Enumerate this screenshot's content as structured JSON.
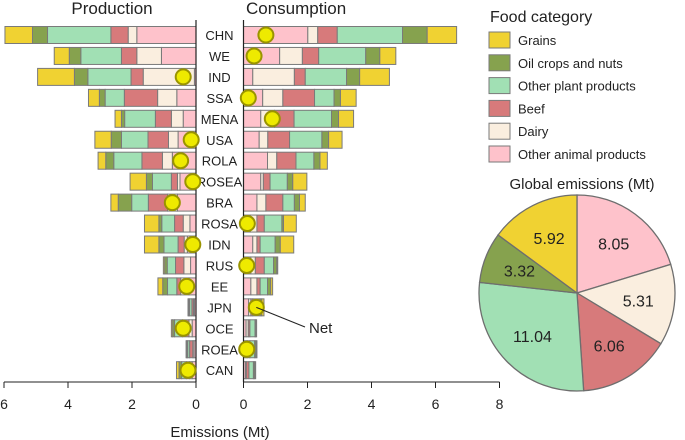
{
  "chart_data": [
    {
      "type": "bar",
      "orientation": "horizontal-stacked",
      "title": "Production",
      "xlabel": "Emissions (Mt)",
      "xlim": [
        6,
        0
      ],
      "xticks": [
        6,
        4,
        2,
        0
      ],
      "categories": [
        "CHN",
        "WE",
        "IND",
        "SSA",
        "MENA",
        "USA",
        "ROLA",
        "ROSEA",
        "BRA",
        "ROSA",
        "IDN",
        "RUS",
        "EE",
        "JPN",
        "OCE",
        "ROEA",
        "CAN"
      ],
      "series": [
        {
          "name": "Other animal products",
          "values": [
            1.85,
            1.08,
            0.05,
            0.6,
            0.4,
            0.56,
            0.74,
            0.5,
            0.58,
            0.19,
            0.27,
            0.17,
            0.22,
            0.05,
            0.12,
            0.06,
            0.12
          ]
        },
        {
          "name": "Dairy",
          "values": [
            0.27,
            0.77,
            1.6,
            0.6,
            0.37,
            0.3,
            0.31,
            0.08,
            0.31,
            0.21,
            0.1,
            0.21,
            0.26,
            0.03,
            0.1,
            0.04,
            0.08
          ]
        },
        {
          "name": "Beef",
          "values": [
            0.54,
            0.48,
            0.38,
            1.04,
            0.5,
            0.64,
            0.64,
            0.19,
            0.6,
            0.27,
            0.19,
            0.26,
            0.12,
            0.05,
            0.2,
            0.1,
            0.1
          ]
        },
        {
          "name": "Other plant products",
          "values": [
            1.98,
            1.27,
            1.35,
            0.6,
            0.96,
            0.83,
            0.88,
            0.59,
            0.52,
            0.4,
            0.44,
            0.26,
            0.29,
            0.07,
            0.25,
            0.06,
            0.15
          ]
        },
        {
          "name": "Oil crops and nuts",
          "values": [
            0.47,
            0.36,
            0.42,
            0.18,
            0.1,
            0.32,
            0.25,
            0.19,
            0.42,
            0.09,
            0.16,
            0.08,
            0.15,
            0.03,
            0.06,
            0.03,
            0.08
          ]
        },
        {
          "name": "Grains",
          "values": [
            0.86,
            0.47,
            1.15,
            0.34,
            0.2,
            0.51,
            0.24,
            0.51,
            0.23,
            0.45,
            0.45,
            0.04,
            0.15,
            0.02,
            0.04,
            0.02,
            0.08
          ]
        }
      ],
      "net": [
        null,
        null,
        0.4,
        null,
        null,
        0.15,
        0.48,
        0.1,
        0.74,
        null,
        0.1,
        null,
        0.29,
        null,
        0.4,
        null,
        0.25
      ]
    },
    {
      "type": "bar",
      "orientation": "horizontal-stacked",
      "title": "Consumption",
      "xlim": [
        0,
        8
      ],
      "xticks": [
        0,
        2,
        4,
        6,
        8
      ],
      "categories": [
        "CHN",
        "WE",
        "IND",
        "SSA",
        "MENA",
        "USA",
        "ROLA",
        "ROSEA",
        "BRA",
        "ROSA",
        "IDN",
        "RUS",
        "EE",
        "JPN",
        "OCE",
        "ROEA",
        "CAN"
      ],
      "series": [
        {
          "name": "Other animal products",
          "values": [
            2.01,
            1.13,
            0.29,
            0.6,
            0.54,
            0.49,
            0.75,
            0.54,
            0.42,
            0.21,
            0.29,
            0.23,
            0.23,
            0.16,
            0.08,
            0.08,
            0.06
          ]
        },
        {
          "name": "Dairy",
          "values": [
            0.31,
            0.71,
            1.3,
            0.63,
            0.43,
            0.27,
            0.29,
            0.08,
            0.28,
            0.21,
            0.13,
            0.14,
            0.19,
            0.07,
            0.07,
            0.04,
            0.03
          ]
        },
        {
          "name": "Beef",
          "values": [
            0.61,
            0.51,
            0.34,
            0.99,
            0.61,
            0.68,
            0.6,
            0.21,
            0.53,
            0.23,
            0.1,
            0.28,
            0.1,
            0.06,
            0.05,
            0.08,
            0.08
          ]
        },
        {
          "name": "Other plant products",
          "values": [
            2.04,
            1.47,
            1.29,
            0.61,
            1.17,
            1.01,
            0.56,
            0.54,
            0.36,
            0.55,
            0.47,
            0.29,
            0.23,
            0.23,
            0.16,
            0.15,
            0.14
          ]
        },
        {
          "name": "Oil crops and nuts",
          "values": [
            0.77,
            0.44,
            0.41,
            0.2,
            0.22,
            0.21,
            0.19,
            0.17,
            0.16,
            0.05,
            0.16,
            0.1,
            0.1,
            0.05,
            0.03,
            0.04,
            0.04
          ]
        },
        {
          "name": "Grains",
          "values": [
            0.92,
            0.5,
            0.93,
            0.49,
            0.47,
            0.42,
            0.23,
            0.44,
            0.18,
            0.4,
            0.42,
            0.03,
            0.06,
            0.07,
            0.02,
            0.03,
            0.03
          ]
        }
      ],
      "net": [
        0.7,
        0.33,
        null,
        0.15,
        0.9,
        null,
        null,
        null,
        null,
        0.12,
        null,
        0.1,
        null,
        0.4,
        null,
        0.1,
        null
      ],
      "annotation": "Net"
    },
    {
      "type": "pie",
      "title": "Global emissions (Mt)",
      "labels": [
        "Other animal products",
        "Dairy",
        "Beef",
        "Other plant products",
        "Oil crops and nuts",
        "Grains"
      ],
      "values": [
        8.05,
        5.31,
        6.06,
        11.04,
        3.32,
        5.92
      ],
      "value_labels": [
        "8.05",
        "5.31",
        "6.06",
        "11.04",
        "3.32",
        "5.92"
      ]
    }
  ],
  "legend": {
    "title": "Food category",
    "items": [
      {
        "label": "Grains",
        "color": "#f0d232"
      },
      {
        "label": "Oil crops and nuts",
        "color": "#86a24e"
      },
      {
        "label": "Other plant products",
        "color": "#a1e0b4"
      },
      {
        "label": "Beef",
        "color": "#d77a7b"
      },
      {
        "label": "Dairy",
        "color": "#faeedf"
      },
      {
        "label": "Other animal products",
        "color": "#fec2cb"
      }
    ]
  },
  "colors": {
    "Other animal products": "#fec2cb",
    "Dairy": "#faeedf",
    "Beef": "#d77a7b",
    "Other plant products": "#a1e0b4",
    "Oil crops and nuts": "#86a24e",
    "Grains": "#f0d232",
    "net_marker": "#eeea00"
  }
}
